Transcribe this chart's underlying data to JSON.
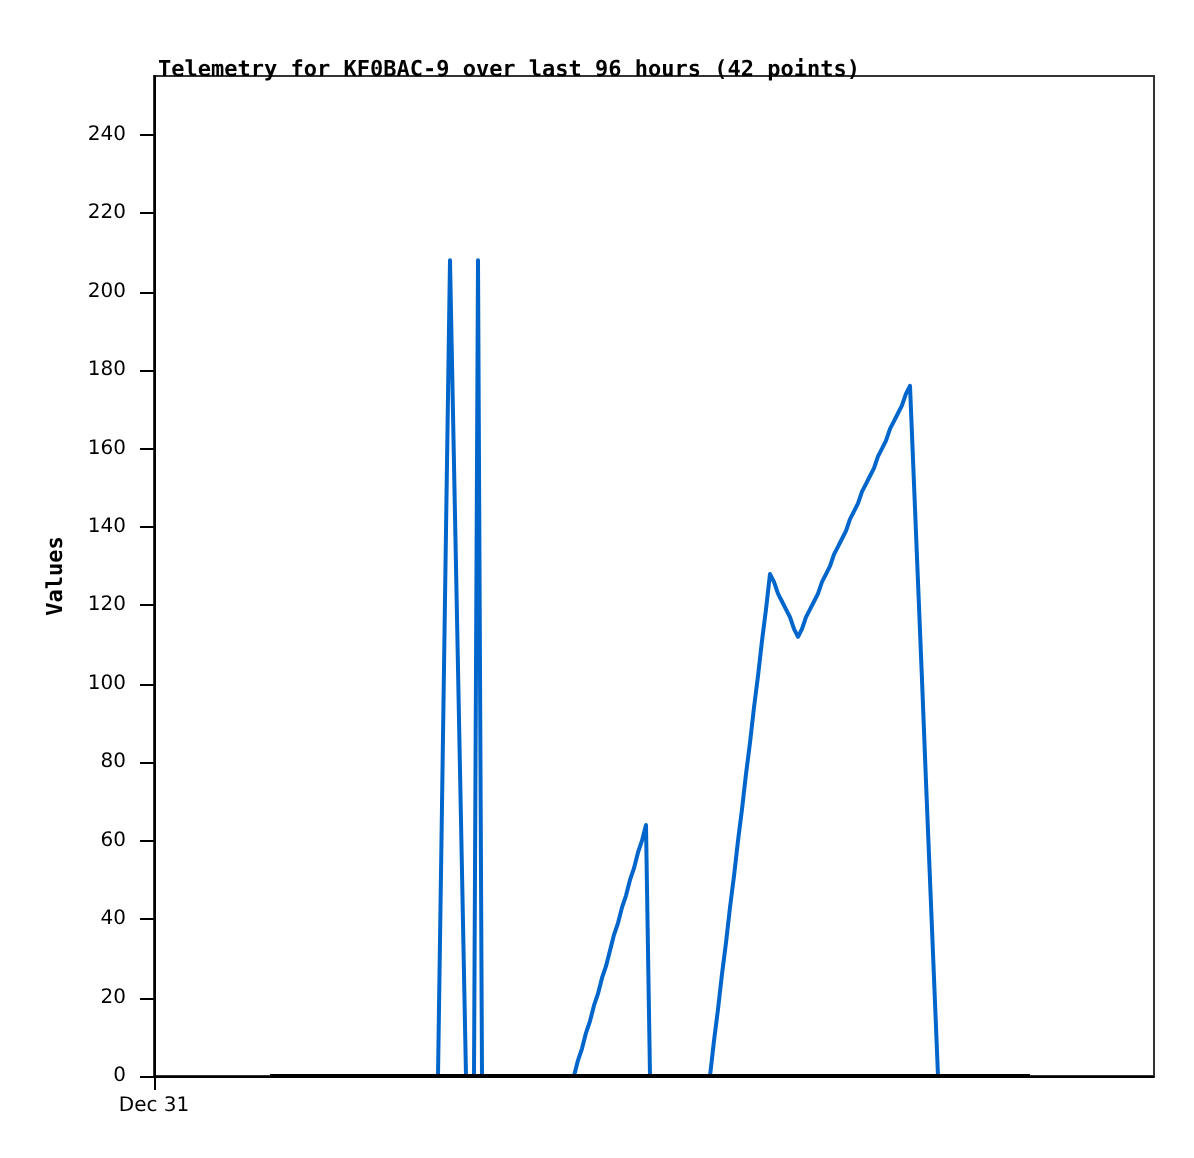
{
  "chart_data": {
    "type": "line",
    "title": "Telemetry for KF0BAC-9 over last 96 hours (42 points)",
    "ylabel": "Values",
    "categories": [
      "Dec 31",
      null,
      null,
      null,
      null,
      null,
      null,
      null,
      null,
      null,
      null,
      null,
      null,
      null,
      null,
      null,
      null,
      null,
      null,
      null,
      null,
      null,
      null,
      null,
      null,
      null,
      null,
      null,
      null,
      null,
      null,
      null,
      null,
      null,
      null,
      null,
      null,
      null,
      null,
      null,
      null,
      null,
      null,
      null,
      null,
      null,
      null,
      null,
      null,
      null,
      null,
      null,
      null,
      null,
      null,
      null,
      null,
      null,
      null,
      null,
      null,
      null,
      null,
      null,
      null,
      null,
      null,
      null,
      null,
      null,
      null,
      null,
      null,
      null,
      null,
      null,
      null,
      null,
      null,
      null,
      null,
      null,
      null,
      null,
      null,
      null,
      null,
      null,
      null,
      null,
      null,
      null,
      null,
      null,
      null,
      null,
      null,
      null,
      null,
      null,
      null,
      null,
      null,
      null,
      null,
      null,
      null,
      null,
      null,
      null,
      null,
      null,
      null,
      null,
      null,
      null,
      null,
      null,
      null,
      null,
      null,
      null,
      null,
      null,
      null,
      null,
      null,
      null,
      null,
      null,
      null,
      null,
      null,
      null,
      null,
      null,
      null,
      null,
      null,
      null,
      null,
      null,
      null,
      null,
      null,
      null,
      null,
      null,
      null,
      null,
      null,
      null,
      null,
      null,
      null,
      null,
      null,
      null,
      null,
      null,
      null,
      null,
      null,
      null,
      null,
      null,
      null,
      null,
      null,
      null,
      null,
      null,
      null,
      null,
      null,
      null,
      null,
      null,
      null,
      null,
      null,
      null,
      null,
      null,
      null,
      null,
      null,
      null,
      null,
      null,
      null,
      null,
      null,
      null,
      null,
      null,
      null,
      null,
      null,
      null,
      null,
      null,
      null,
      null,
      null,
      null,
      null,
      null,
      null,
      null,
      null,
      null,
      null,
      null,
      null,
      null,
      null,
      null,
      null,
      null,
      null,
      null,
      null,
      null,
      null,
      null,
      null,
      null,
      null,
      null,
      null,
      null,
      null,
      null,
      null,
      null,
      null,
      null,
      null,
      null,
      null,
      null,
      null,
      null,
      null,
      null,
      null,
      null,
      null,
      null,
      null
    ],
    "series": [
      {
        "color": "#0066cc",
        "values": [
          null,
          null,
          null,
          null,
          null,
          null,
          null,
          null,
          null,
          null,
          null,
          null,
          null,
          null,
          null,
          null,
          null,
          null,
          null,
          null,
          null,
          null,
          null,
          null,
          null,
          null,
          null,
          null,
          null,
          null,
          null,
          null,
          null,
          null,
          null,
          null,
          null,
          null,
          null,
          null,
          null,
          null,
          null,
          null,
          null,
          null,
          null,
          null,
          null,
          null,
          null,
          null,
          null,
          null,
          null,
          null,
          null,
          null,
          null,
          null,
          null,
          null,
          null,
          null,
          null,
          null,
          null,
          null,
          null,
          null,
          null,
          0,
          69,
          139,
          208,
          156,
          104,
          52,
          0,
          null,
          0,
          208,
          0,
          null,
          null,
          null,
          null,
          null,
          null,
          null,
          null,
          null,
          null,
          null,
          null,
          null,
          null,
          null,
          null,
          null,
          null,
          null,
          null,
          null,
          null,
          0,
          4,
          7,
          11,
          14,
          18,
          21,
          25,
          28,
          32,
          36,
          39,
          43,
          46,
          50,
          53,
          57,
          60,
          64,
          0,
          null,
          null,
          null,
          null,
          null,
          null,
          null,
          null,
          null,
          null,
          null,
          null,
          null,
          null,
          0,
          9,
          17,
          26,
          34,
          43,
          51,
          60,
          68,
          77,
          85,
          94,
          102,
          111,
          119,
          128,
          126,
          123,
          121,
          119,
          117,
          114,
          112,
          114,
          117,
          119,
          121,
          123,
          126,
          128,
          130,
          133,
          135,
          137,
          139,
          142,
          144,
          146,
          149,
          151,
          153,
          155,
          158,
          160,
          162,
          165,
          167,
          169,
          171,
          174,
          176,
          151,
          126,
          101,
          75,
          50,
          25,
          0,
          null,
          null,
          null,
          null,
          null,
          null,
          null,
          null,
          null,
          null,
          null,
          null,
          null,
          null,
          null,
          null,
          null,
          null,
          null,
          null,
          null,
          null,
          null,
          null,
          null,
          null,
          null,
          null,
          null,
          null,
          null,
          null,
          null,
          null,
          null,
          null,
          null,
          null,
          null,
          null,
          null,
          null,
          null,
          null,
          null,
          null,
          null,
          null,
          null,
          null,
          null,
          null,
          null,
          null
        ]
      },
      {
        "color": "#000000",
        "values": [
          null,
          null,
          null,
          null,
          null,
          null,
          null,
          null,
          null,
          null,
          null,
          null,
          null,
          null,
          null,
          null,
          null,
          null,
          null,
          null,
          null,
          null,
          null,
          null,
          null,
          null,
          null,
          null,
          null,
          0,
          0,
          0,
          0,
          0,
          0,
          0,
          0,
          0,
          0,
          0,
          0,
          0,
          0,
          0,
          0,
          0,
          0,
          0,
          0,
          0,
          0,
          0,
          0,
          0,
          0,
          0,
          0,
          0,
          0,
          0,
          0,
          0,
          0,
          0,
          0,
          0,
          0,
          0,
          0,
          0,
          0,
          0,
          0,
          0,
          0,
          0,
          0,
          0,
          0,
          0,
          0,
          0,
          0,
          0,
          0,
          0,
          0,
          0,
          0,
          0,
          0,
          0,
          0,
          0,
          0,
          0,
          0,
          0,
          0,
          0,
          0,
          0,
          0,
          0,
          0,
          0,
          0,
          0,
          0,
          0,
          0,
          0,
          0,
          0,
          0,
          0,
          0,
          0,
          0,
          0,
          0,
          0,
          0,
          0,
          0,
          0,
          0,
          0,
          0,
          0,
          0,
          0,
          0,
          0,
          0,
          0,
          0,
          0,
          0,
          0,
          0,
          0,
          0,
          0,
          0,
          0,
          0,
          0,
          0,
          0,
          0,
          0,
          0,
          0,
          0,
          0,
          0,
          0,
          0,
          0,
          0,
          0,
          0,
          0,
          0,
          0,
          0,
          0,
          0,
          0,
          0,
          0,
          0,
          0,
          0,
          0,
          0,
          0,
          0,
          0,
          0,
          0,
          0,
          0,
          0,
          0,
          0,
          0,
          0,
          0,
          0,
          0,
          0,
          0,
          0,
          0,
          0,
          0,
          0,
          0,
          0,
          0,
          0,
          0,
          0,
          0,
          0,
          0,
          0,
          0,
          0,
          0,
          0,
          0,
          0,
          0,
          0,
          0,
          0,
          0,
          null,
          null,
          null,
          null,
          null,
          null,
          null,
          null,
          null,
          null,
          null,
          null,
          null,
          null,
          null,
          null,
          null,
          null,
          null,
          null,
          null,
          null,
          null,
          null,
          null,
          null,
          null,
          null,
          null,
          null,
          null
        ]
      }
    ],
    "ylim": [
      0,
      255
    ],
    "yticks": [
      0,
      20,
      40,
      60,
      80,
      100,
      120,
      140,
      160,
      180,
      200,
      220,
      240
    ],
    "grid": false
  }
}
